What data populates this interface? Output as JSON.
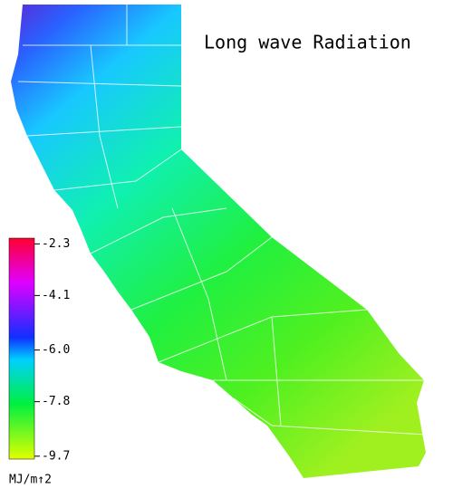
{
  "title": "Long wave Radiation",
  "colorbar": {
    "lim": [
      -9.8,
      -2.1
    ],
    "ticks": [
      -2.3,
      -4.1,
      {
        "value": -6.0,
        "label": "-6.0"
      },
      -7.8,
      -9.7
    ],
    "unit": "MJ/m↑2"
  }
}
